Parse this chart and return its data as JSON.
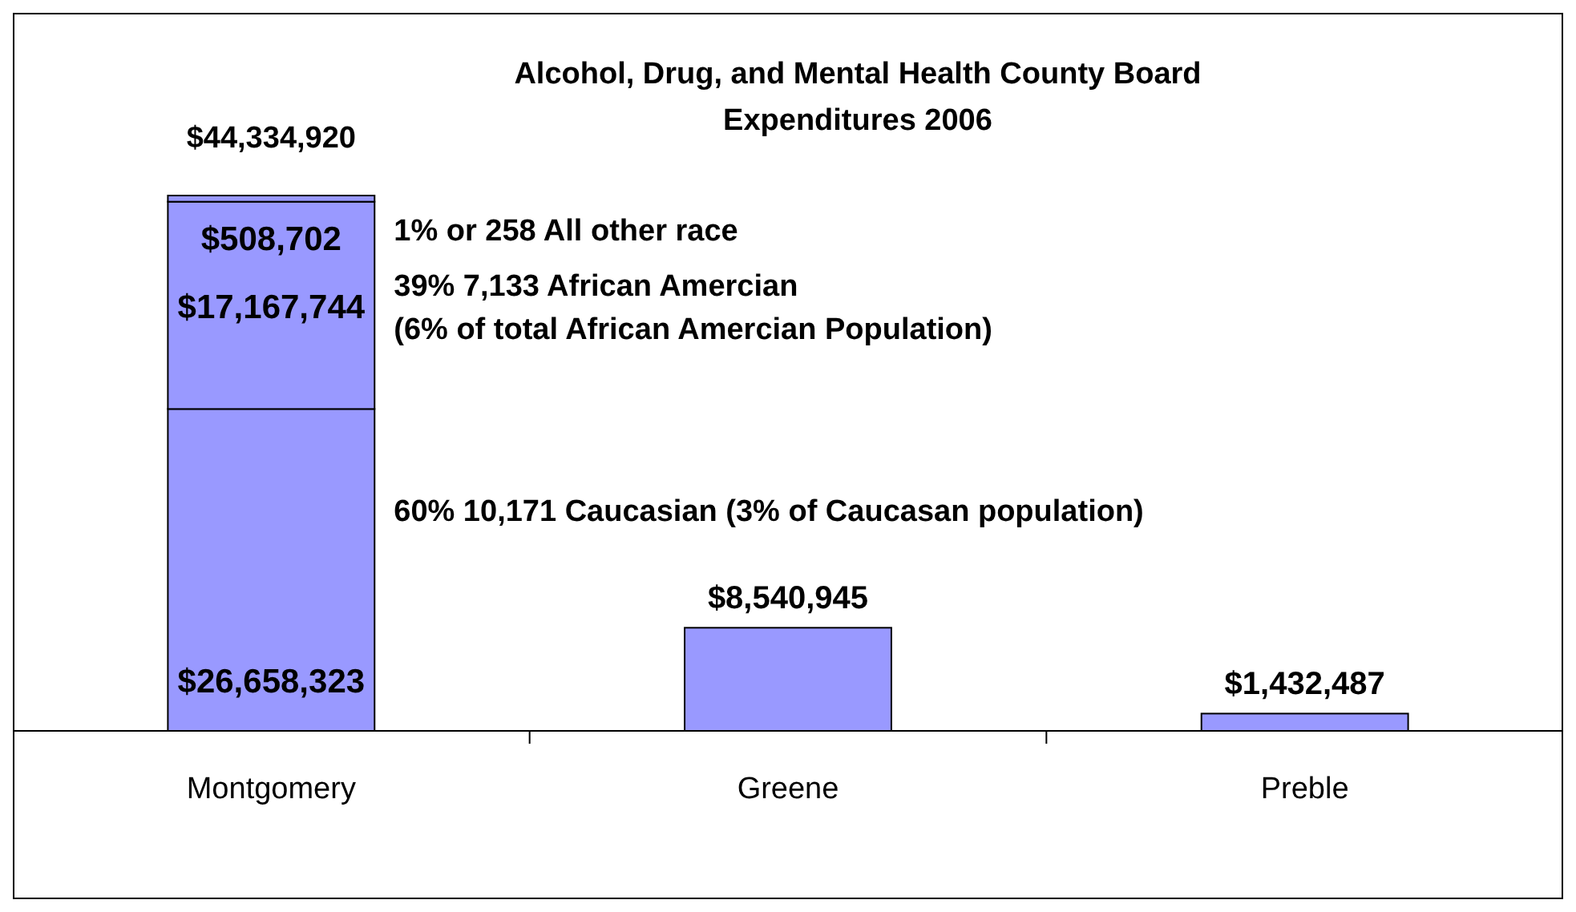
{
  "chart_data": {
    "type": "bar",
    "title": "Alcohol, Drug, and Mental Health County Board Expenditures 2006",
    "categories": [
      "Montgomery",
      "Greene",
      "Preble"
    ],
    "stacked": true,
    "series": [
      {
        "color": "#9999ff",
        "values": [
          26658323,
          8540945,
          1432487
        ],
        "value_labels": [
          "$26,658,323",
          "$8,540,945",
          "$1,432,487"
        ]
      },
      {
        "color": "#9999ff",
        "values": [
          17167744,
          null,
          null
        ],
        "value_labels": [
          "$17,167,744",
          null,
          null
        ]
      },
      {
        "color": "#9999ff",
        "values": [
          508702,
          null,
          null
        ],
        "value_labels": [
          "$508,702",
          null,
          null
        ]
      }
    ],
    "annotations": [
      "$44,334,920",
      "1% or 258 All other race",
      "39% 7,133 African Amercian\n(6% of total African Amercian Population)",
      "60% 10,171 Caucasian (3% of Caucasan population)"
    ]
  }
}
